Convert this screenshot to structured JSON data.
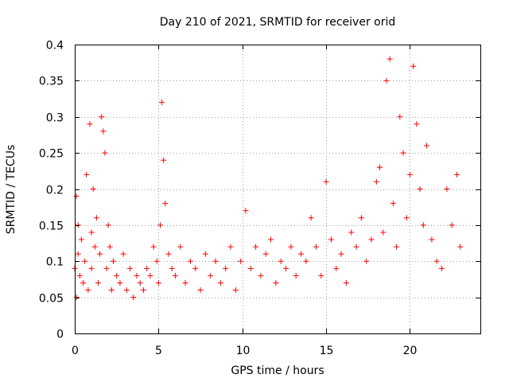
{
  "chart_data": {
    "type": "scatter",
    "title": "Day 210 of 2021, SRMTID for receiver orid",
    "xlabel": "GPS time / hours",
    "ylabel": "SRMTID / TECUs",
    "xlim": [
      0,
      24.2
    ],
    "ylim": [
      0,
      0.4
    ],
    "xticks": [
      0,
      5,
      10,
      15,
      20
    ],
    "xtick_labels": [
      "0",
      "5",
      "10",
      "15",
      "20"
    ],
    "yticks": [
      0,
      0.05,
      0.1,
      0.15,
      0.2,
      0.25,
      0.3,
      0.35,
      0.4
    ],
    "ytick_labels": [
      "0",
      "0.05",
      "0.1",
      "0.15",
      "0.2",
      "0.25",
      "0.3",
      "0.35",
      "0.4"
    ],
    "grid": true,
    "marker": "plus",
    "color": "#ff0000",
    "series": [
      {
        "name": "SRMTID",
        "x": [
          0.0,
          0.1,
          0.1,
          0.2,
          0.2,
          0.3,
          0.4,
          0.5,
          0.6,
          0.7,
          0.8,
          0.9,
          1.0,
          1.0,
          1.1,
          1.2,
          1.3,
          1.4,
          1.5,
          1.6,
          1.7,
          1.8,
          1.9,
          2.0,
          2.1,
          2.2,
          2.3,
          2.5,
          2.7,
          2.9,
          3.1,
          3.3,
          3.5,
          3.7,
          3.9,
          4.1,
          4.3,
          4.5,
          4.7,
          4.9,
          5.0,
          5.1,
          5.2,
          5.3,
          5.4,
          5.6,
          5.8,
          6.0,
          6.3,
          6.6,
          6.9,
          7.2,
          7.5,
          7.8,
          8.1,
          8.4,
          8.7,
          9.0,
          9.3,
          9.6,
          9.9,
          10.2,
          10.5,
          10.8,
          11.1,
          11.4,
          11.7,
          12.0,
          12.3,
          12.6,
          12.9,
          13.2,
          13.5,
          13.8,
          14.1,
          14.4,
          14.7,
          15.0,
          15.3,
          15.6,
          15.9,
          16.2,
          16.5,
          16.8,
          17.1,
          17.4,
          17.7,
          18.0,
          18.2,
          18.4,
          18.6,
          18.8,
          19.0,
          19.2,
          19.4,
          19.6,
          19.8,
          20.0,
          20.2,
          20.4,
          20.6,
          20.8,
          21.0,
          21.3,
          21.6,
          21.9,
          22.2,
          22.5,
          22.8,
          23.0
        ],
        "y": [
          0.09,
          0.19,
          0.05,
          0.15,
          0.11,
          0.08,
          0.13,
          0.07,
          0.1,
          0.22,
          0.06,
          0.29,
          0.14,
          0.09,
          0.2,
          0.12,
          0.16,
          0.07,
          0.11,
          0.3,
          0.28,
          0.25,
          0.09,
          0.15,
          0.12,
          0.06,
          0.1,
          0.08,
          0.07,
          0.11,
          0.06,
          0.09,
          0.05,
          0.08,
          0.07,
          0.06,
          0.09,
          0.08,
          0.12,
          0.1,
          0.07,
          0.15,
          0.32,
          0.24,
          0.18,
          0.11,
          0.09,
          0.08,
          0.12,
          0.07,
          0.1,
          0.09,
          0.06,
          0.11,
          0.08,
          0.1,
          0.07,
          0.09,
          0.12,
          0.06,
          0.1,
          0.17,
          0.09,
          0.12,
          0.08,
          0.11,
          0.13,
          0.07,
          0.1,
          0.09,
          0.12,
          0.08,
          0.11,
          0.1,
          0.16,
          0.12,
          0.08,
          0.21,
          0.13,
          0.09,
          0.11,
          0.07,
          0.14,
          0.12,
          0.16,
          0.1,
          0.13,
          0.21,
          0.23,
          0.14,
          0.35,
          0.38,
          0.18,
          0.12,
          0.3,
          0.25,
          0.16,
          0.22,
          0.37,
          0.29,
          0.2,
          0.15,
          0.26,
          0.13,
          0.1,
          0.09,
          0.2,
          0.15,
          0.22,
          0.12
        ]
      }
    ]
  }
}
